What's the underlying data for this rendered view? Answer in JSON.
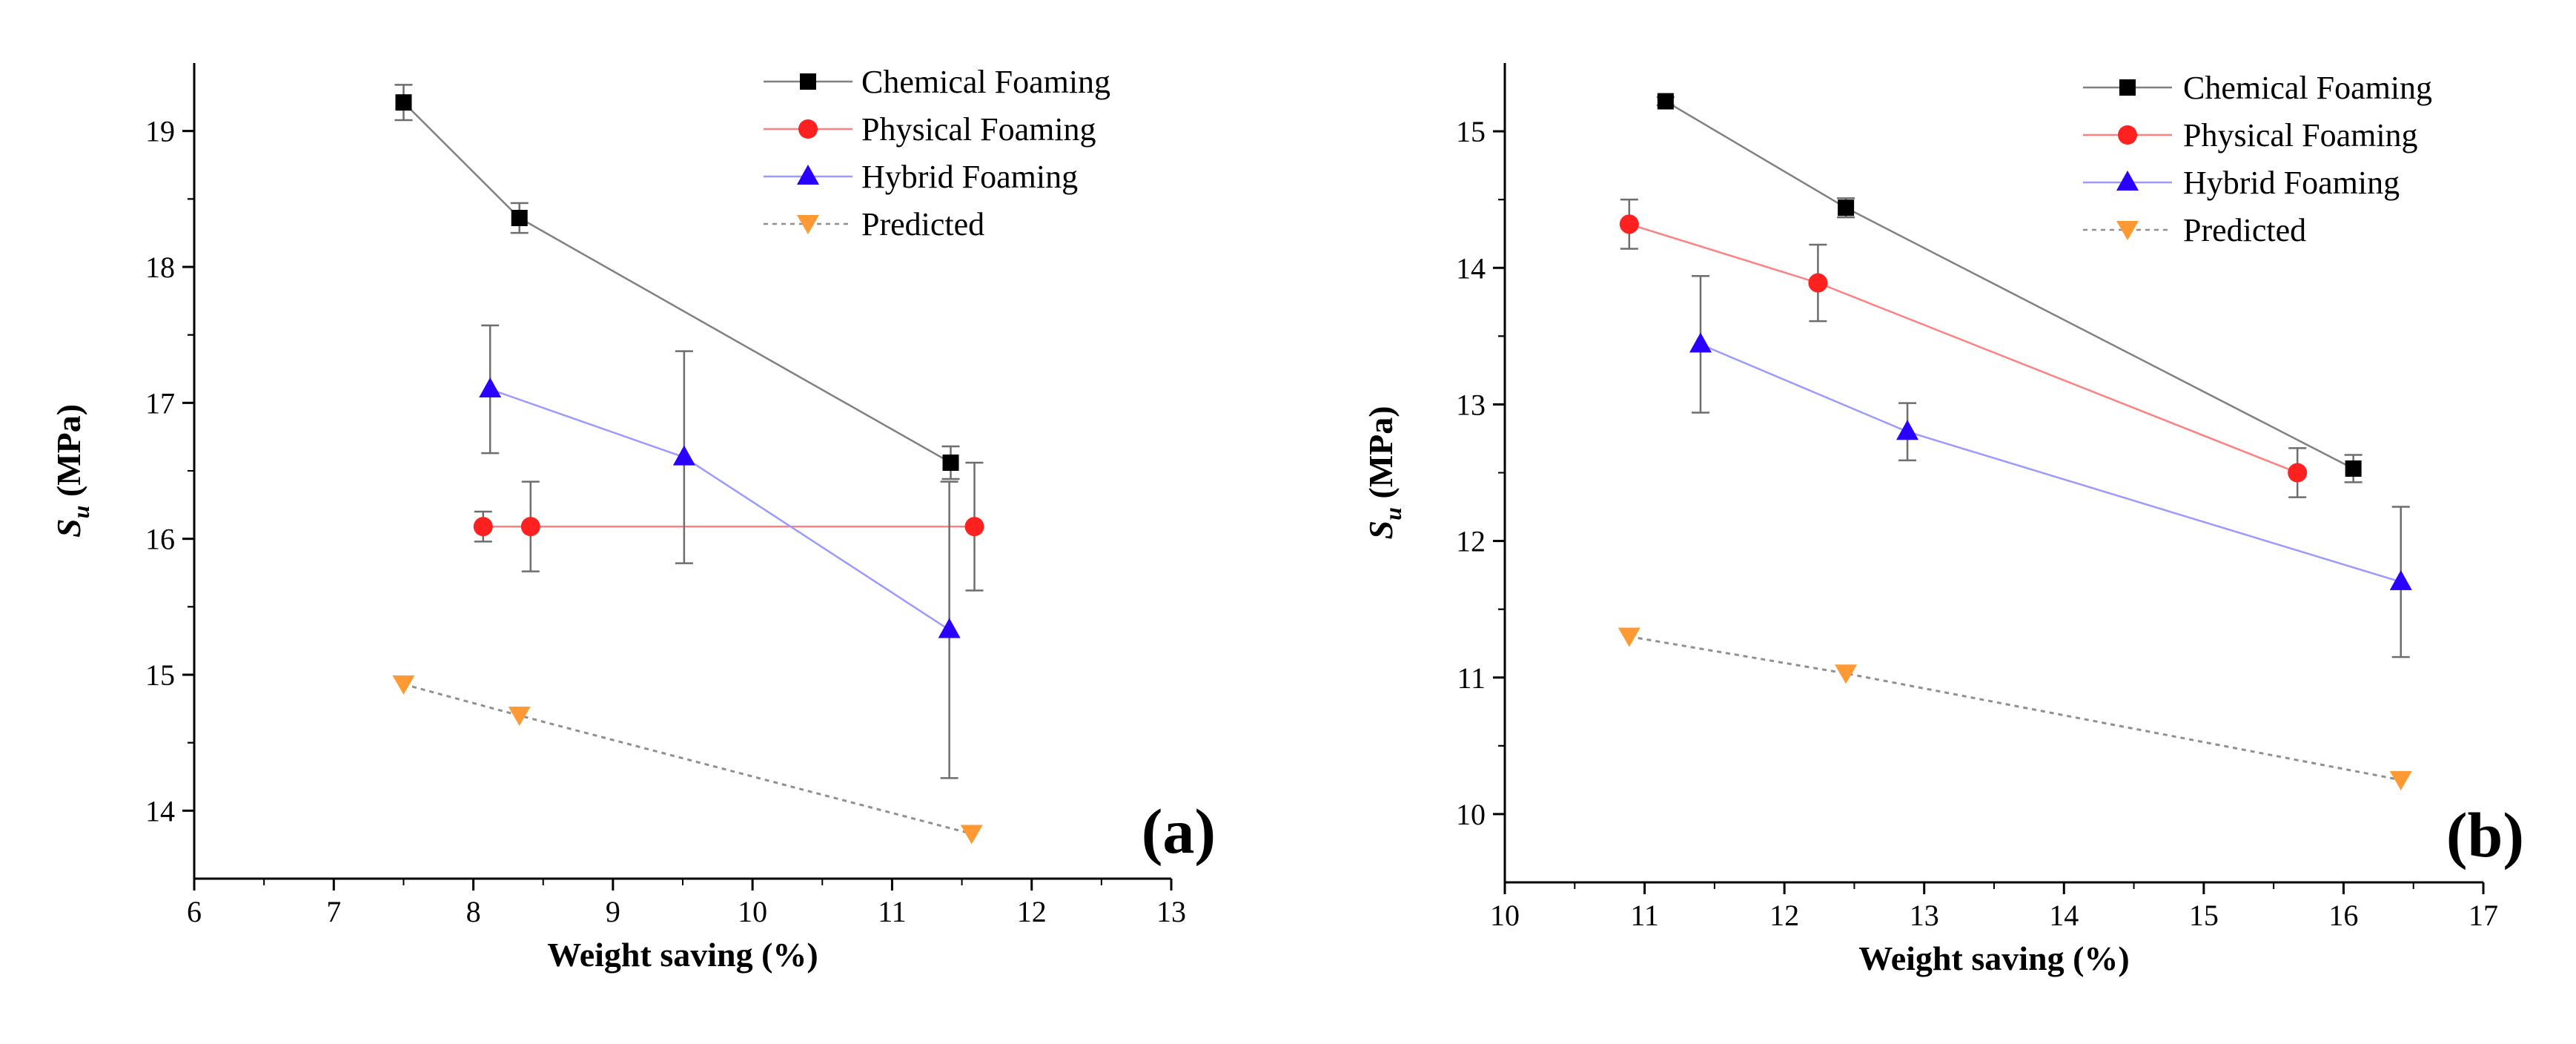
{
  "chart_data": [
    {
      "type": "line",
      "panel_label": "(a)",
      "xlabel": "Weight saving (%)",
      "ylabel": {
        "main": "S",
        "sub": "u",
        "unit": " (MPa)"
      },
      "xlim": [
        6,
        13
      ],
      "ylim": [
        13.5,
        19.5
      ],
      "xticks": [
        6,
        7,
        8,
        9,
        10,
        11,
        12,
        13
      ],
      "yticks": [
        14,
        15,
        16,
        17,
        18,
        19
      ],
      "grid": false,
      "legend_position": "top-right",
      "series": [
        {
          "name": "Chemical Foaming",
          "color": "#000000",
          "line_color": "#808080",
          "marker": "square",
          "line_style": "solid",
          "x": [
            7.5,
            8.33,
            11.42
          ],
          "y": [
            19.21,
            18.36,
            16.56
          ],
          "err": [
            0.13,
            0.11,
            0.12
          ]
        },
        {
          "name": "Physical Foaming",
          "color": "#ff2020",
          "line_color": "#ff8080",
          "marker": "circle",
          "line_style": "solid",
          "x": [
            8.07,
            8.41,
            11.59
          ],
          "y": [
            16.09,
            16.09,
            16.09
          ],
          "err": [
            0.11,
            0.33,
            0.47
          ]
        },
        {
          "name": "Hybrid Foaming",
          "color": "#2a00ff",
          "line_color": "#9a9aff",
          "marker": "triangle-up",
          "line_style": "solid",
          "x": [
            8.12,
            9.51,
            11.41
          ],
          "y": [
            17.1,
            16.6,
            15.33
          ],
          "err": [
            0.47,
            0.78,
            1.09
          ]
        },
        {
          "name": "Predicted",
          "color": "#ff9933",
          "line_color": "#909090",
          "marker": "triangle-down",
          "line_style": "dotted",
          "x": [
            7.5,
            8.33,
            11.57
          ],
          "y": [
            14.93,
            14.7,
            13.83
          ],
          "err": [
            0,
            0,
            0
          ]
        }
      ]
    },
    {
      "type": "line",
      "panel_label": "(b)",
      "xlabel": "Weight saving (%)",
      "ylabel": {
        "main": "S",
        "sub": "u",
        "unit": " (MPa)"
      },
      "xlim": [
        10,
        17
      ],
      "ylim": [
        9.5,
        15.5
      ],
      "xticks": [
        10,
        11,
        12,
        13,
        14,
        15,
        16,
        17
      ],
      "yticks": [
        10,
        11,
        12,
        13,
        14,
        15
      ],
      "grid": false,
      "legend_position": "top-right",
      "series": [
        {
          "name": "Chemical Foaming",
          "color": "#000000",
          "line_color": "#808080",
          "marker": "square",
          "line_style": "solid",
          "x": [
            11.15,
            12.44,
            16.07
          ],
          "y": [
            15.22,
            14.44,
            12.53
          ],
          "err": [
            0.03,
            0.07,
            0.1
          ]
        },
        {
          "name": "Physical Foaming",
          "color": "#ff2020",
          "line_color": "#ff8080",
          "marker": "circle",
          "line_style": "solid",
          "x": [
            10.89,
            12.24,
            15.67
          ],
          "y": [
            14.32,
            13.89,
            12.5
          ],
          "err": [
            0.18,
            0.28,
            0.18
          ]
        },
        {
          "name": "Hybrid Foaming",
          "color": "#2a00ff",
          "line_color": "#9a9aff",
          "marker": "triangle-up",
          "line_style": "solid",
          "x": [
            11.4,
            12.88,
            16.41
          ],
          "y": [
            13.44,
            12.8,
            11.7
          ],
          "err": [
            0.5,
            0.21,
            0.55
          ]
        },
        {
          "name": "Predicted",
          "color": "#ff9933",
          "line_color": "#909090",
          "marker": "triangle-down",
          "line_style": "dotted",
          "x": [
            10.89,
            12.44,
            16.41
          ],
          "y": [
            11.3,
            11.03,
            10.25
          ],
          "err": [
            0,
            0,
            0
          ]
        }
      ]
    }
  ]
}
